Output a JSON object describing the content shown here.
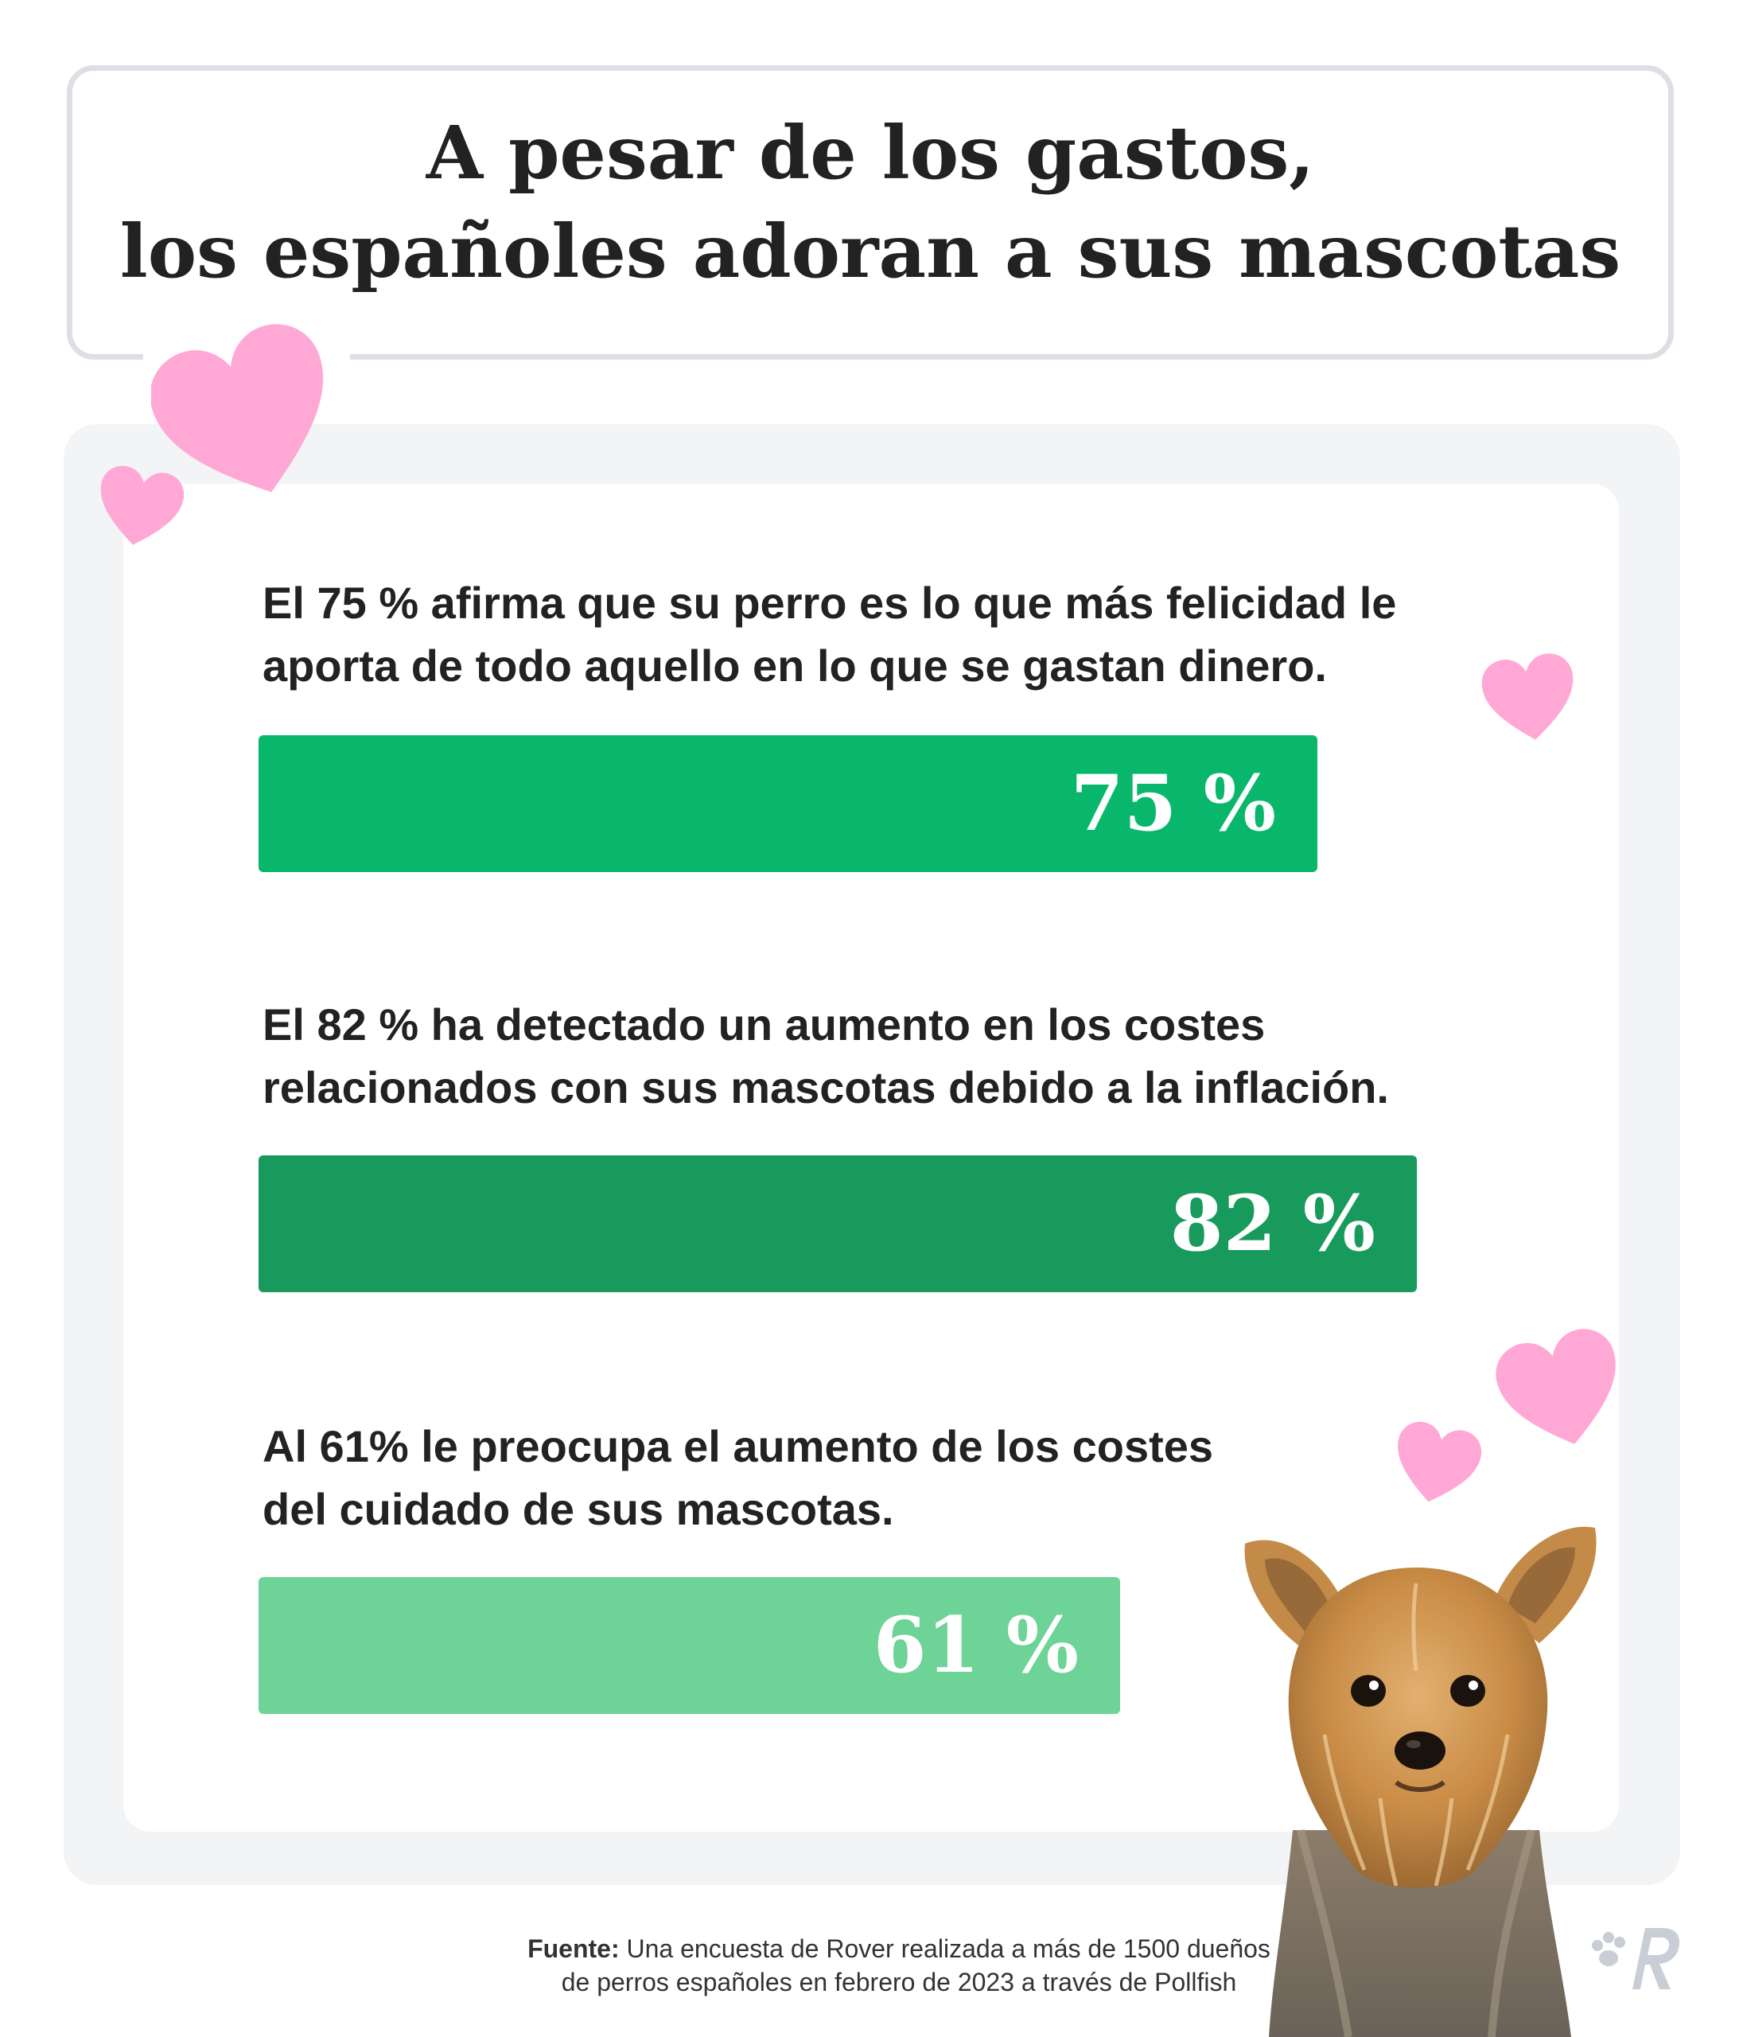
{
  "title": {
    "line1": "A pesar de los gastos,",
    "line2": "los españoles adoran a sus mascotas"
  },
  "stats": [
    {
      "text_line1": "El 75 % afirma que su perro es lo que más felicidad le",
      "text_line2": "aporta de todo aquello en lo que se gastan dinero.",
      "value_label": "75 %"
    },
    {
      "text_line1": "El 82 % ha detectado un aumento en los costes",
      "text_line2": "relacionados con sus mascotas debido a la inflación.",
      "value_label": "82 %"
    },
    {
      "text_line1": "Al 61% le preocupa el aumento de los costes",
      "text_line2": "del cuidado de sus mascotas.",
      "value_label": "61 %"
    }
  ],
  "chart_data": {
    "type": "bar",
    "orientation": "horizontal",
    "categories": [
      "El 75 % afirma que su perro es lo que más felicidad le aporta de todo aquello en lo que se gastan dinero.",
      "El 82 % ha detectado un aumento en los costes relacionados con sus mascotas debido a la inflación.",
      "Al 61% le preocupa el aumento de los costes del cuidado de sus mascotas."
    ],
    "values": [
      75,
      82,
      61
    ],
    "unit": "%",
    "xlim": [
      0,
      100
    ],
    "grid": false,
    "colors": [
      "#08b76b",
      "#179a5c",
      "#6dd396"
    ]
  },
  "source": {
    "label": "Fuente:",
    "line1": "Una encuesta de Rover realizada a más de 1500 dueños",
    "line2": "de perros españoles en febrero de 2023 a través de Pollfish"
  },
  "decor": {
    "heart_color": "#ffa8d5",
    "icons": [
      "heart-icon",
      "dog-image",
      "rover-logo-icon"
    ]
  }
}
